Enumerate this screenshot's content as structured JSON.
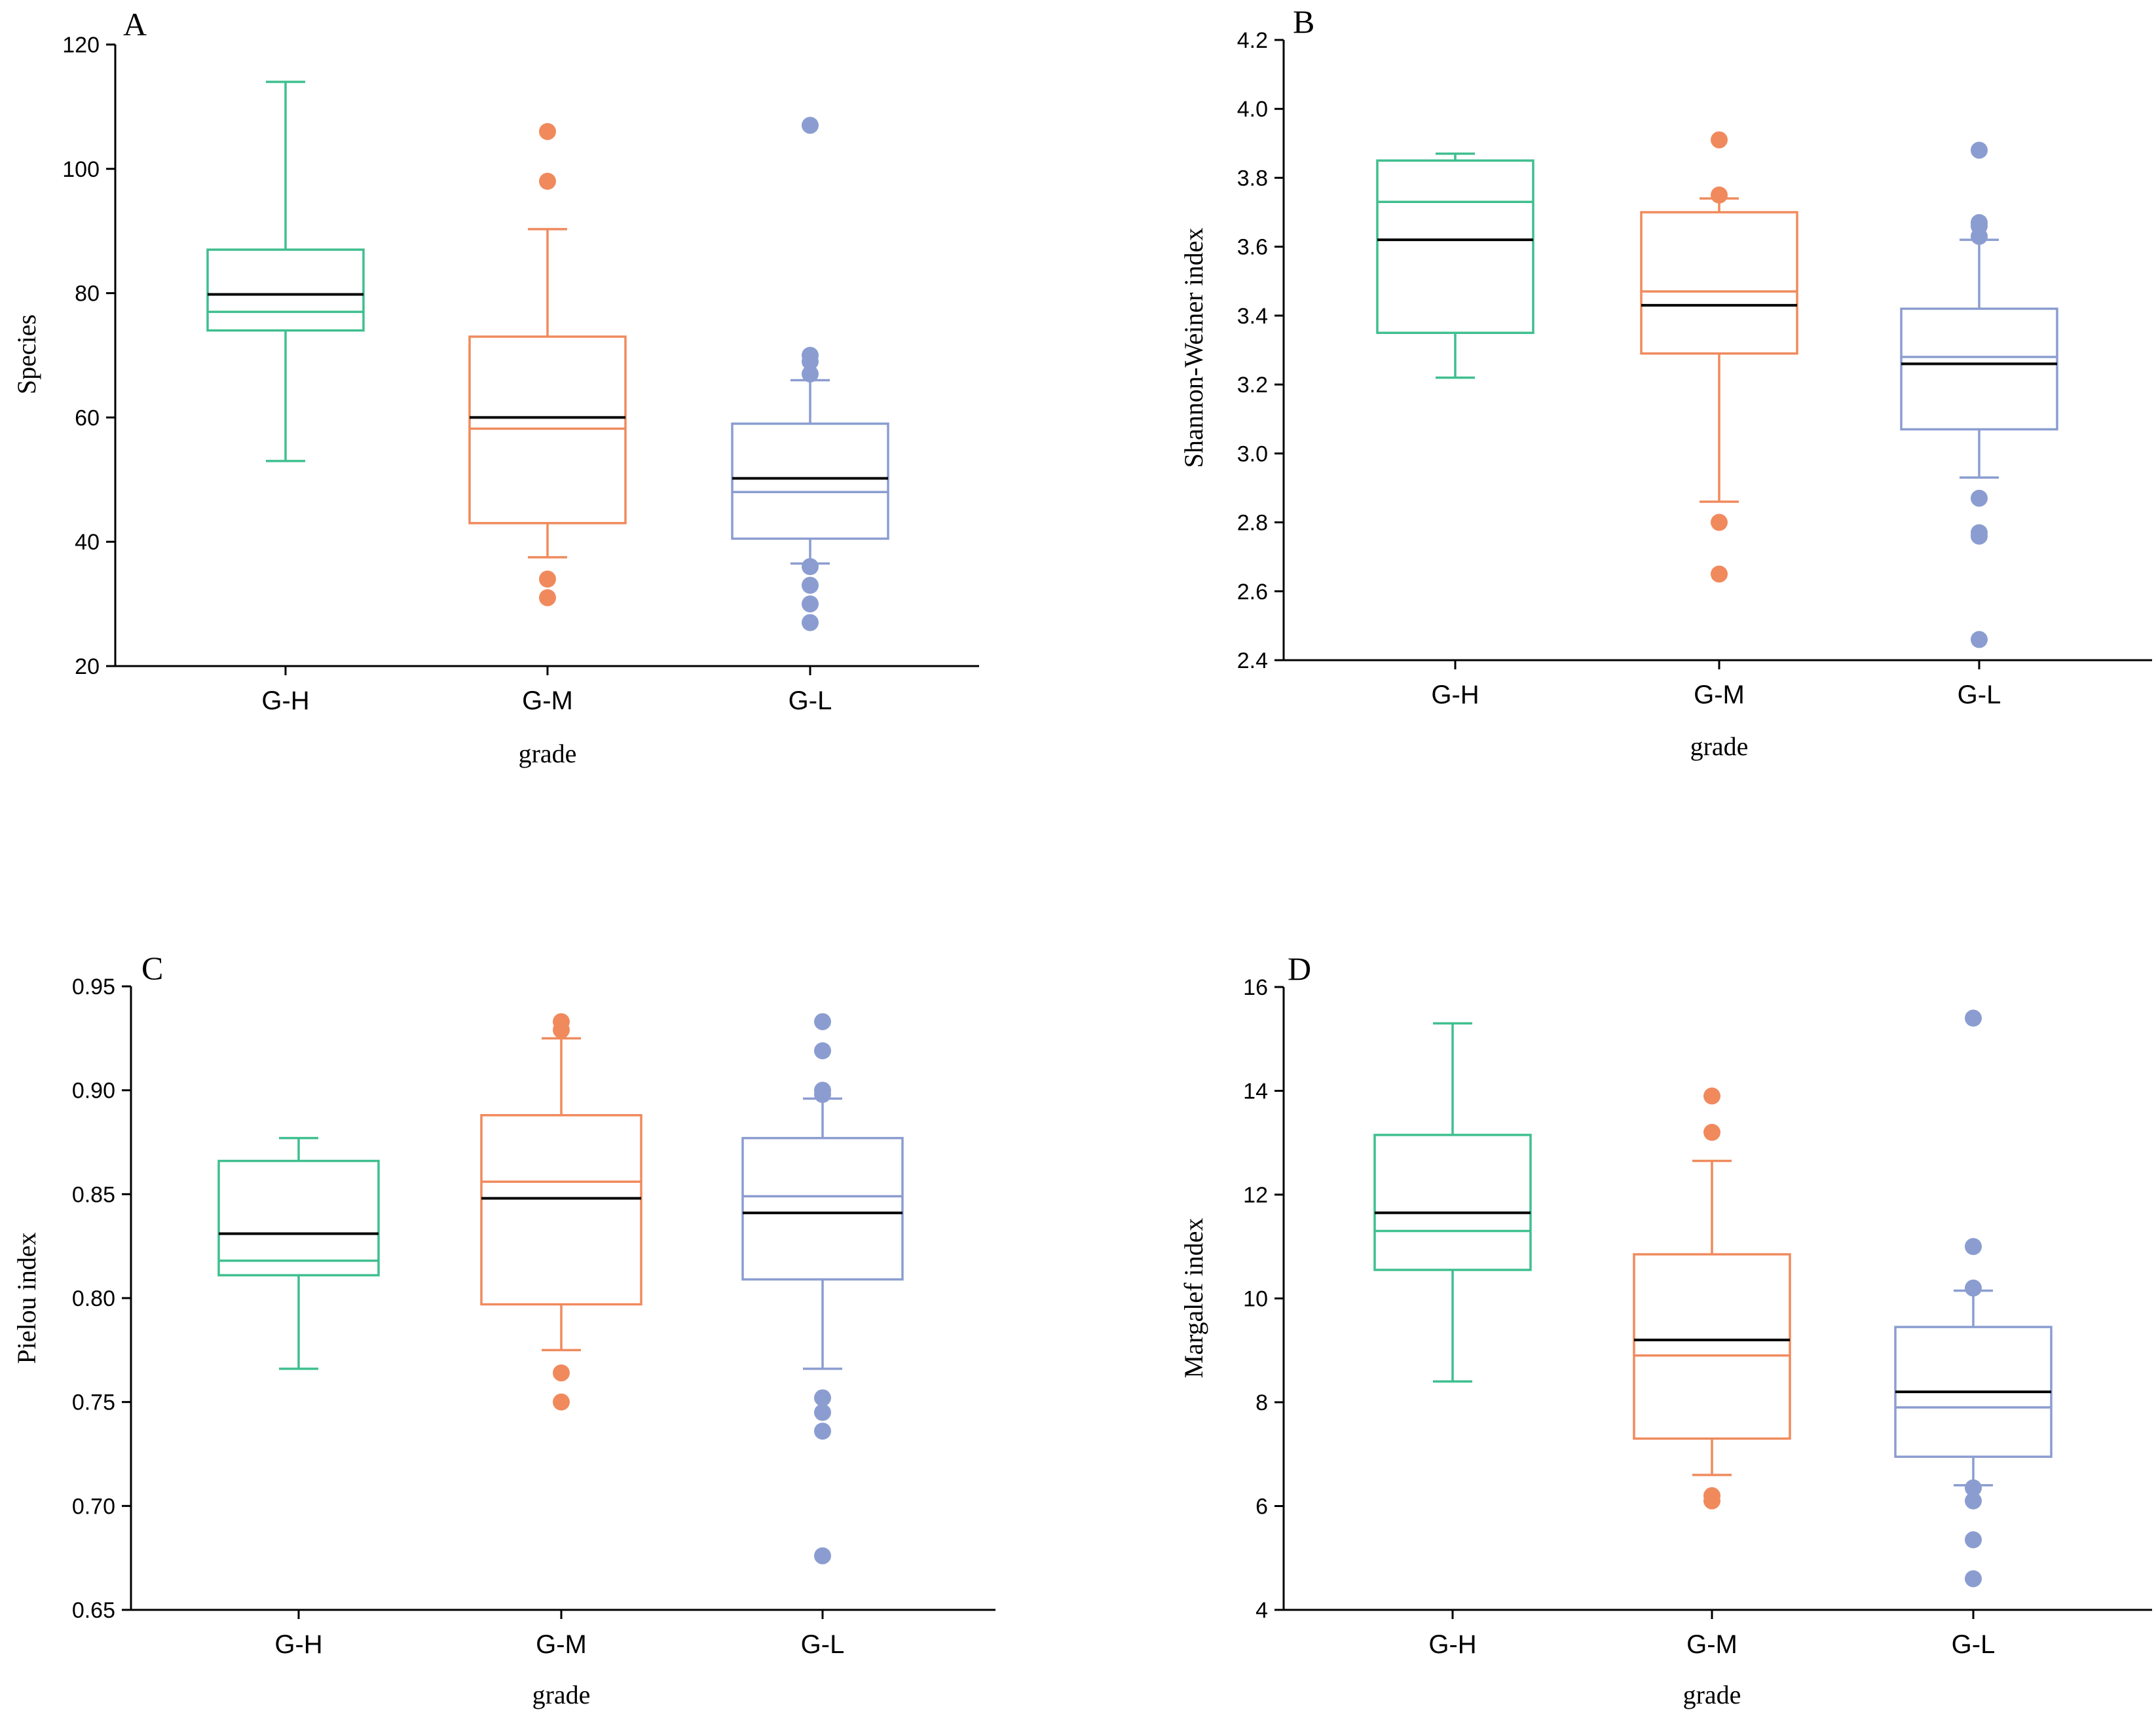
{
  "chart_data": [
    {
      "panel": "A",
      "type": "box",
      "xlabel": "grade",
      "ylabel": "Species",
      "ylim": [
        20,
        120
      ],
      "yticks": [
        "20",
        "40",
        "60",
        "80",
        "100",
        "120"
      ],
      "yticks_values": [
        20,
        40,
        60,
        80,
        100,
        120
      ],
      "categories": [
        "G-H",
        "G-M",
        "G-L"
      ],
      "colors": [
        "#3fbf8f",
        "#f08a5d",
        "#8b9dd0"
      ],
      "boxes": [
        {
          "whisker_low": 53,
          "q1": 74,
          "median": 77,
          "mean": 79.8,
          "q3": 87,
          "whisker_high": 114,
          "outliers": []
        },
        {
          "whisker_low": 37.5,
          "q1": 43,
          "median": 58.2,
          "mean": 60,
          "q3": 73,
          "whisker_high": 90.3,
          "outliers": [
            31,
            34,
            98,
            106
          ]
        },
        {
          "whisker_low": 36.5,
          "q1": 40.5,
          "median": 48,
          "mean": 50.2,
          "q3": 59,
          "whisker_high": 66,
          "outliers": [
            27,
            30,
            33,
            36,
            67,
            69,
            70,
            107
          ]
        }
      ]
    },
    {
      "panel": "B",
      "type": "box",
      "xlabel": "grade",
      "ylabel": "Shannon-Weiner index",
      "ylim": [
        2.4,
        4.2
      ],
      "yticks": [
        "2.4",
        "2.6",
        "2.8",
        "3.0",
        "3.2",
        "3.4",
        "3.6",
        "3.8",
        "4.0",
        "4.2"
      ],
      "yticks_values": [
        2.4,
        2.6,
        2.8,
        3.0,
        3.2,
        3.4,
        3.6,
        3.8,
        4.0,
        4.2
      ],
      "categories": [
        "G-H",
        "G-M",
        "G-L"
      ],
      "colors": [
        "#3fbf8f",
        "#f08a5d",
        "#8b9dd0"
      ],
      "boxes": [
        {
          "whisker_low": 3.22,
          "q1": 3.35,
          "median": 3.73,
          "mean": 3.62,
          "q3": 3.85,
          "whisker_high": 3.87,
          "outliers": []
        },
        {
          "whisker_low": 2.86,
          "q1": 3.29,
          "median": 3.47,
          "mean": 3.43,
          "q3": 3.7,
          "whisker_high": 3.74,
          "outliers": [
            2.65,
            2.8,
            3.75,
            3.91
          ]
        },
        {
          "whisker_low": 2.93,
          "q1": 3.07,
          "median": 3.28,
          "mean": 3.26,
          "q3": 3.42,
          "whisker_high": 3.62,
          "outliers": [
            2.46,
            2.76,
            2.77,
            2.87,
            3.63,
            3.66,
            3.67,
            3.88
          ]
        }
      ]
    },
    {
      "panel": "C",
      "type": "box",
      "xlabel": "grade",
      "ylabel": "Pielou index",
      "ylim": [
        0.65,
        0.95
      ],
      "yticks": [
        "0.65",
        "0.70",
        "0.75",
        "0.80",
        "0.85",
        "0.90",
        "0.95"
      ],
      "yticks_values": [
        0.65,
        0.7,
        0.75,
        0.8,
        0.85,
        0.9,
        0.95
      ],
      "categories": [
        "G-H",
        "G-M",
        "G-L"
      ],
      "colors": [
        "#3fbf8f",
        "#f08a5d",
        "#8b9dd0"
      ],
      "boxes": [
        {
          "whisker_low": 0.766,
          "q1": 0.811,
          "median": 0.818,
          "mean": 0.831,
          "q3": 0.866,
          "whisker_high": 0.877,
          "outliers": []
        },
        {
          "whisker_low": 0.775,
          "q1": 0.797,
          "median": 0.856,
          "mean": 0.848,
          "q3": 0.888,
          "whisker_high": 0.925,
          "outliers": [
            0.75,
            0.764,
            0.929,
            0.933
          ]
        },
        {
          "whisker_low": 0.766,
          "q1": 0.809,
          "median": 0.849,
          "mean": 0.841,
          "q3": 0.877,
          "whisker_high": 0.896,
          "outliers": [
            0.676,
            0.736,
            0.745,
            0.752,
            0.898,
            0.9,
            0.919,
            0.933
          ]
        }
      ]
    },
    {
      "panel": "D",
      "type": "box",
      "xlabel": "grade",
      "ylabel": "Margalef index",
      "ylim": [
        4,
        16
      ],
      "yticks": [
        "4",
        "6",
        "8",
        "10",
        "12",
        "14",
        "16"
      ],
      "yticks_values": [
        4,
        6,
        8,
        10,
        12,
        14,
        16
      ],
      "categories": [
        "G-H",
        "G-M",
        "G-L"
      ],
      "colors": [
        "#3fbf8f",
        "#f08a5d",
        "#8b9dd0"
      ],
      "boxes": [
        {
          "whisker_low": 8.4,
          "q1": 10.55,
          "median": 11.3,
          "mean": 11.65,
          "q3": 13.15,
          "whisker_high": 15.3,
          "outliers": []
        },
        {
          "whisker_low": 6.6,
          "q1": 7.3,
          "median": 8.9,
          "mean": 9.2,
          "q3": 10.85,
          "whisker_high": 12.65,
          "outliers": [
            6.1,
            6.2,
            13.2,
            13.9
          ]
        },
        {
          "whisker_low": 6.4,
          "q1": 6.95,
          "median": 7.9,
          "mean": 8.2,
          "q3": 9.45,
          "whisker_high": 10.15,
          "outliers": [
            4.6,
            5.35,
            6.1,
            6.35,
            10.2,
            11.0,
            15.4
          ]
        }
      ]
    }
  ]
}
